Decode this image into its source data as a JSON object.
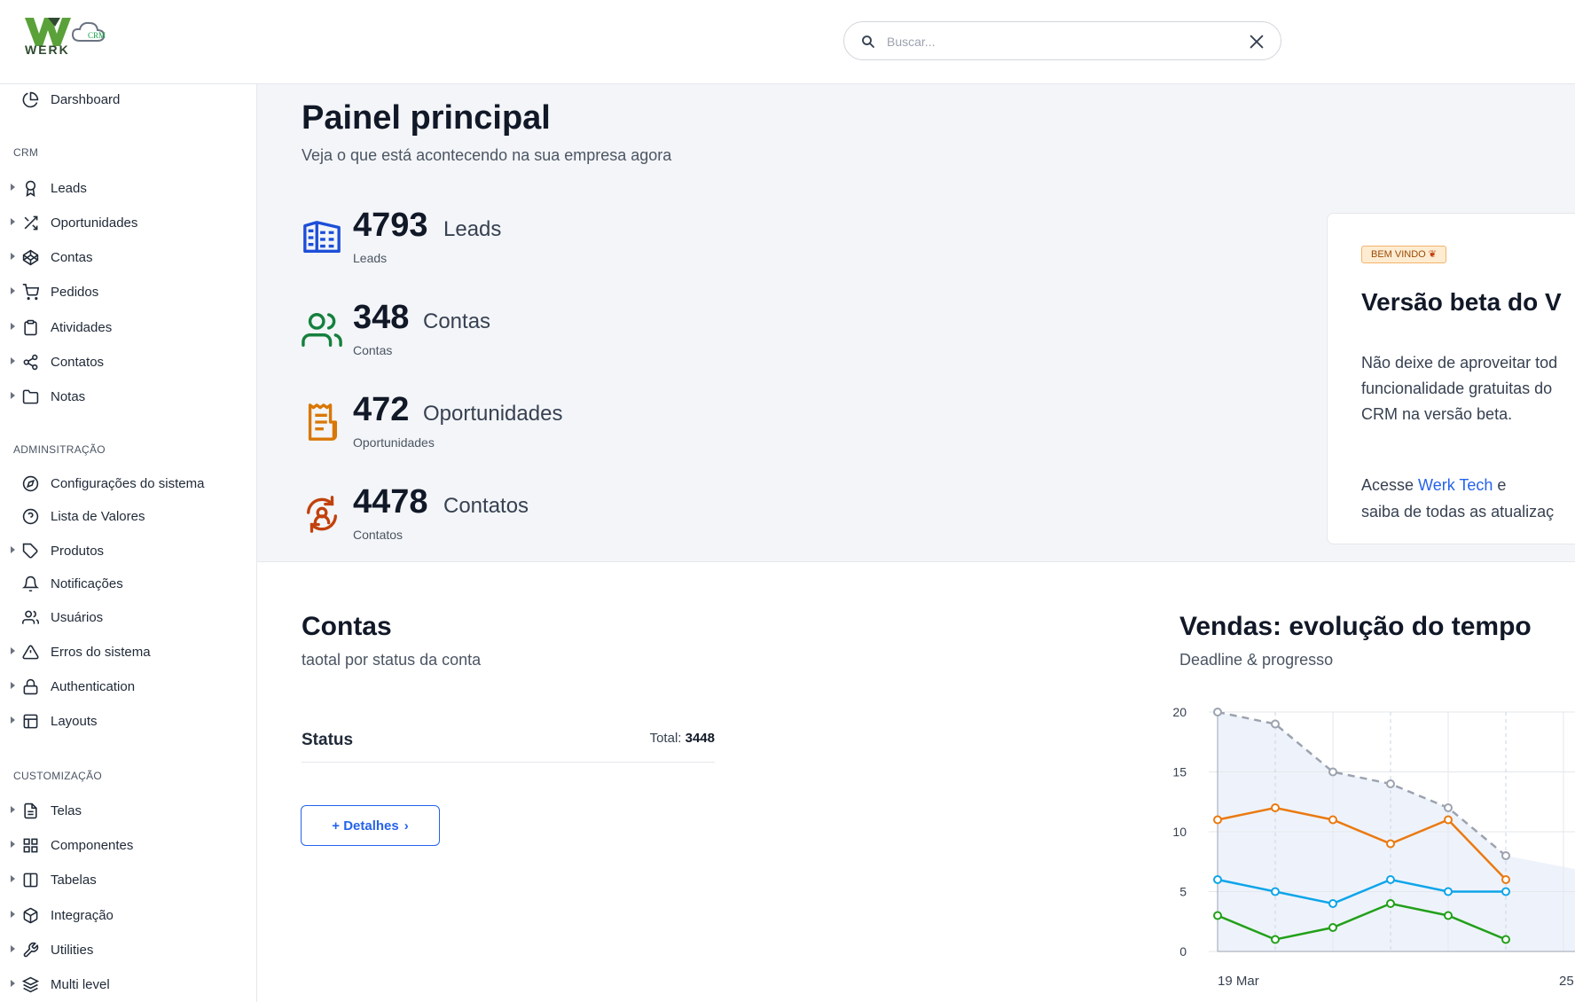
{
  "header": {
    "logo_text": "WERK",
    "logo_badge": "CRM",
    "search_placeholder": "Buscar..."
  },
  "sidebar": {
    "dashboard": {
      "label": "Darshboard",
      "icon": "pie-chart-icon"
    },
    "crm_title": "CRM",
    "crm_items": [
      {
        "label": "Leads",
        "icon": "award-icon"
      },
      {
        "label": "Oportunidades",
        "icon": "shuffle-icon"
      },
      {
        "label": "Contas",
        "icon": "codepen-icon"
      },
      {
        "label": "Pedidos",
        "icon": "shopping-cart-icon"
      },
      {
        "label": "Atividades",
        "icon": "clipboard-icon"
      },
      {
        "label": "Contatos",
        "icon": "share-icon"
      },
      {
        "label": "Notas",
        "icon": "folder-icon"
      }
    ],
    "admin_title": "ADMINSITRAÇÃO",
    "admin_items": [
      {
        "label": "Configurações do sistema",
        "icon": "compass-icon"
      },
      {
        "label": "Lista de Valores",
        "icon": "help-circle-icon"
      },
      {
        "label": "Produtos",
        "icon": "tag-icon"
      },
      {
        "label": "Notificações",
        "icon": "bell-icon"
      },
      {
        "label": "Usuários",
        "icon": "users-icon"
      },
      {
        "label": "Erros do sistema",
        "icon": "alert-triangle-icon"
      },
      {
        "label": "Authentication",
        "icon": "lock-icon"
      },
      {
        "label": "Layouts",
        "icon": "layout-icon"
      }
    ],
    "custom_title": "CUSTOMIZAÇÃO",
    "custom_items": [
      {
        "label": "Telas",
        "icon": "file-text-icon"
      },
      {
        "label": "Componentes",
        "icon": "grid-icon"
      },
      {
        "label": "Tabelas",
        "icon": "columns-icon"
      },
      {
        "label": "Integração",
        "icon": "package-icon"
      },
      {
        "label": "Utilities",
        "icon": "tool-icon"
      },
      {
        "label": "Multi level",
        "icon": "layers-icon"
      }
    ]
  },
  "main": {
    "title": "Painel principal",
    "subtitle": "Veja o que está acontecendo na sua empresa agora",
    "stats": [
      {
        "value": "4793",
        "label": "Leads",
        "sub": "Leads",
        "icon": "building-icon",
        "color": "#1d4ed8"
      },
      {
        "value": "348",
        "label": "Contas",
        "sub": "Contas",
        "icon": "users-icon",
        "color": "#15803d"
      },
      {
        "value": "472",
        "label": "Oportunidades",
        "sub": "Oportunidades",
        "icon": "receipt-icon",
        "color": "#d97706"
      },
      {
        "value": "4478",
        "label": "Contatos",
        "sub": "Contatos",
        "icon": "refresh-person-icon",
        "color": "#c2410c"
      }
    ],
    "welcome": {
      "badge": "BEM VINDO",
      "title": "Versão beta do V",
      "line1": "Não deixe de aproveitar tod",
      "line2": "funcionalidade gratuitas do",
      "line3": "CRM na versão beta.",
      "line4_pre": "Acesse ",
      "line4_link": "Werk Tech",
      "line4_post": " e",
      "line5": "saiba de todas as atualizaç"
    }
  },
  "contas": {
    "title": "Contas",
    "subtitle": "taotal por status da conta",
    "status_label": "Status",
    "total_label": "Total:",
    "total_value": "3448",
    "details_label": "+ Detalhes"
  },
  "vendas": {
    "title": "Vendas: evolução do tempo",
    "subtitle": "Deadline & progresso"
  },
  "chart_data": {
    "type": "line",
    "y_ticks": [
      0,
      5,
      10,
      15,
      20
    ],
    "ylim": [
      0,
      20
    ],
    "x_tick_labels": [
      "19 Mar",
      "25"
    ],
    "x": [
      0,
      1,
      2,
      3,
      4,
      5
    ],
    "series": [
      {
        "color": "#9ca3af",
        "dashed": true,
        "values": [
          20,
          19,
          15,
          14,
          12,
          8
        ]
      },
      {
        "color": "#ea7a12",
        "dashed": false,
        "values": [
          11,
          12,
          11,
          9,
          11,
          6
        ]
      },
      {
        "color": "#0ea5e9",
        "dashed": false,
        "values": [
          6,
          5,
          4,
          6,
          5,
          5
        ]
      },
      {
        "color": "#22a01a",
        "dashed": false,
        "values": [
          3,
          1,
          2,
          4,
          3,
          1
        ]
      }
    ],
    "grid": true
  }
}
